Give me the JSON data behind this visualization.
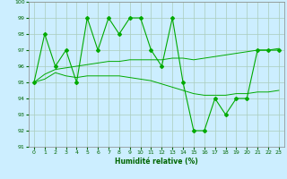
{
  "title": "",
  "xlabel": "Humidité relative (%)",
  "ylabel": "",
  "background_color": "#cceeff",
  "grid_color": "#aaccbb",
  "line_color": "#00aa00",
  "x": [
    0,
    1,
    2,
    3,
    4,
    5,
    6,
    7,
    8,
    9,
    10,
    11,
    12,
    13,
    14,
    15,
    16,
    17,
    18,
    19,
    20,
    21,
    22,
    23
  ],
  "y_main": [
    95,
    98,
    96,
    97,
    95,
    99,
    97,
    99,
    98,
    99,
    99,
    97,
    96,
    99,
    95,
    92,
    92,
    94,
    93,
    94,
    94,
    97,
    97,
    97
  ],
  "y_smooth1": [
    95.0,
    95.2,
    95.6,
    95.4,
    95.3,
    95.4,
    95.4,
    95.4,
    95.4,
    95.3,
    95.2,
    95.1,
    94.9,
    94.7,
    94.5,
    94.3,
    94.2,
    94.2,
    94.2,
    94.3,
    94.3,
    94.4,
    94.4,
    94.5
  ],
  "y_smooth2": [
    95.0,
    95.5,
    95.8,
    95.9,
    96.0,
    96.1,
    96.2,
    96.3,
    96.3,
    96.4,
    96.4,
    96.4,
    96.4,
    96.5,
    96.5,
    96.4,
    96.5,
    96.6,
    96.7,
    96.8,
    96.9,
    97.0,
    97.0,
    97.1
  ],
  "ylim": [
    91,
    100
  ],
  "yticks": [
    91,
    92,
    93,
    94,
    95,
    96,
    97,
    98,
    99,
    100
  ],
  "xlim": [
    -0.5,
    23.5
  ],
  "xticks": [
    0,
    1,
    2,
    3,
    4,
    5,
    6,
    7,
    8,
    9,
    10,
    11,
    12,
    13,
    14,
    15,
    16,
    17,
    18,
    19,
    20,
    21,
    22,
    23
  ]
}
